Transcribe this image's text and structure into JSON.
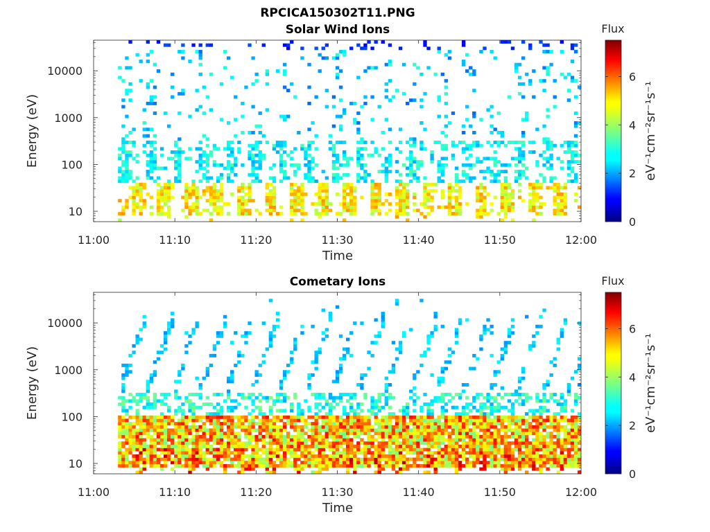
{
  "figure": {
    "title": "RPCICA150302T11.PNG"
  },
  "chart_data": [
    {
      "type": "heatmap",
      "title": "Solar Wind Ions",
      "xlabel": "Time",
      "ylabel": "Energy (eV)",
      "x_ticks": [
        "11:00",
        "11:10",
        "11:20",
        "11:30",
        "11:40",
        "11:50",
        "12:00"
      ],
      "x_range": [
        "11:00",
        "12:00"
      ],
      "y_scale": "log",
      "y_ticks": [
        10,
        100,
        1000,
        10000
      ],
      "y_tick_labels": [
        "10",
        "100",
        "1000",
        "10000"
      ],
      "y_range": [
        6,
        45000
      ],
      "data_start": "11:03",
      "cycle_minutes": 3.25,
      "colorbar": {
        "title": "Flux",
        "label": "eV⁻¹cm⁻²sr⁻¹s⁻¹",
        "ticks": [
          0,
          2,
          4,
          6
        ],
        "range": [
          0,
          7.5
        ],
        "colormap": "jet"
      },
      "description_of_values": "Scattered low-flux (1-3) counts at 100-40000 eV with periodic enhancements; strongest flux (~4-5.5) at 15-40 eV recurring every ~3.25 min"
    },
    {
      "type": "heatmap",
      "title": "Cometary Ions",
      "xlabel": "Time",
      "ylabel": "Energy (eV)",
      "x_ticks": [
        "11:00",
        "11:10",
        "11:20",
        "11:30",
        "11:40",
        "11:50",
        "12:00"
      ],
      "x_range": [
        "11:00",
        "12:00"
      ],
      "y_scale": "log",
      "y_ticks": [
        10,
        100,
        1000,
        10000
      ],
      "y_tick_labels": [
        "10",
        "100",
        "1000",
        "10000"
      ],
      "y_range": [
        6,
        45000
      ],
      "data_start": "11:03",
      "cycle_minutes": 3.25,
      "colorbar": {
        "title": "Flux",
        "label": "eV⁻¹cm⁻²sr⁻¹s⁻¹",
        "ticks": [
          0,
          2,
          4,
          6
        ],
        "range": [
          0,
          7.5
        ],
        "colormap": "jet"
      },
      "description_of_values": "Dense band 8-100 eV with flux ~4-6.5 peaking near 15-40 eV; diagonal energy sweeps reaching 1000-10000 eV each ~3.25 min cycle with flux ~2-3"
    }
  ]
}
